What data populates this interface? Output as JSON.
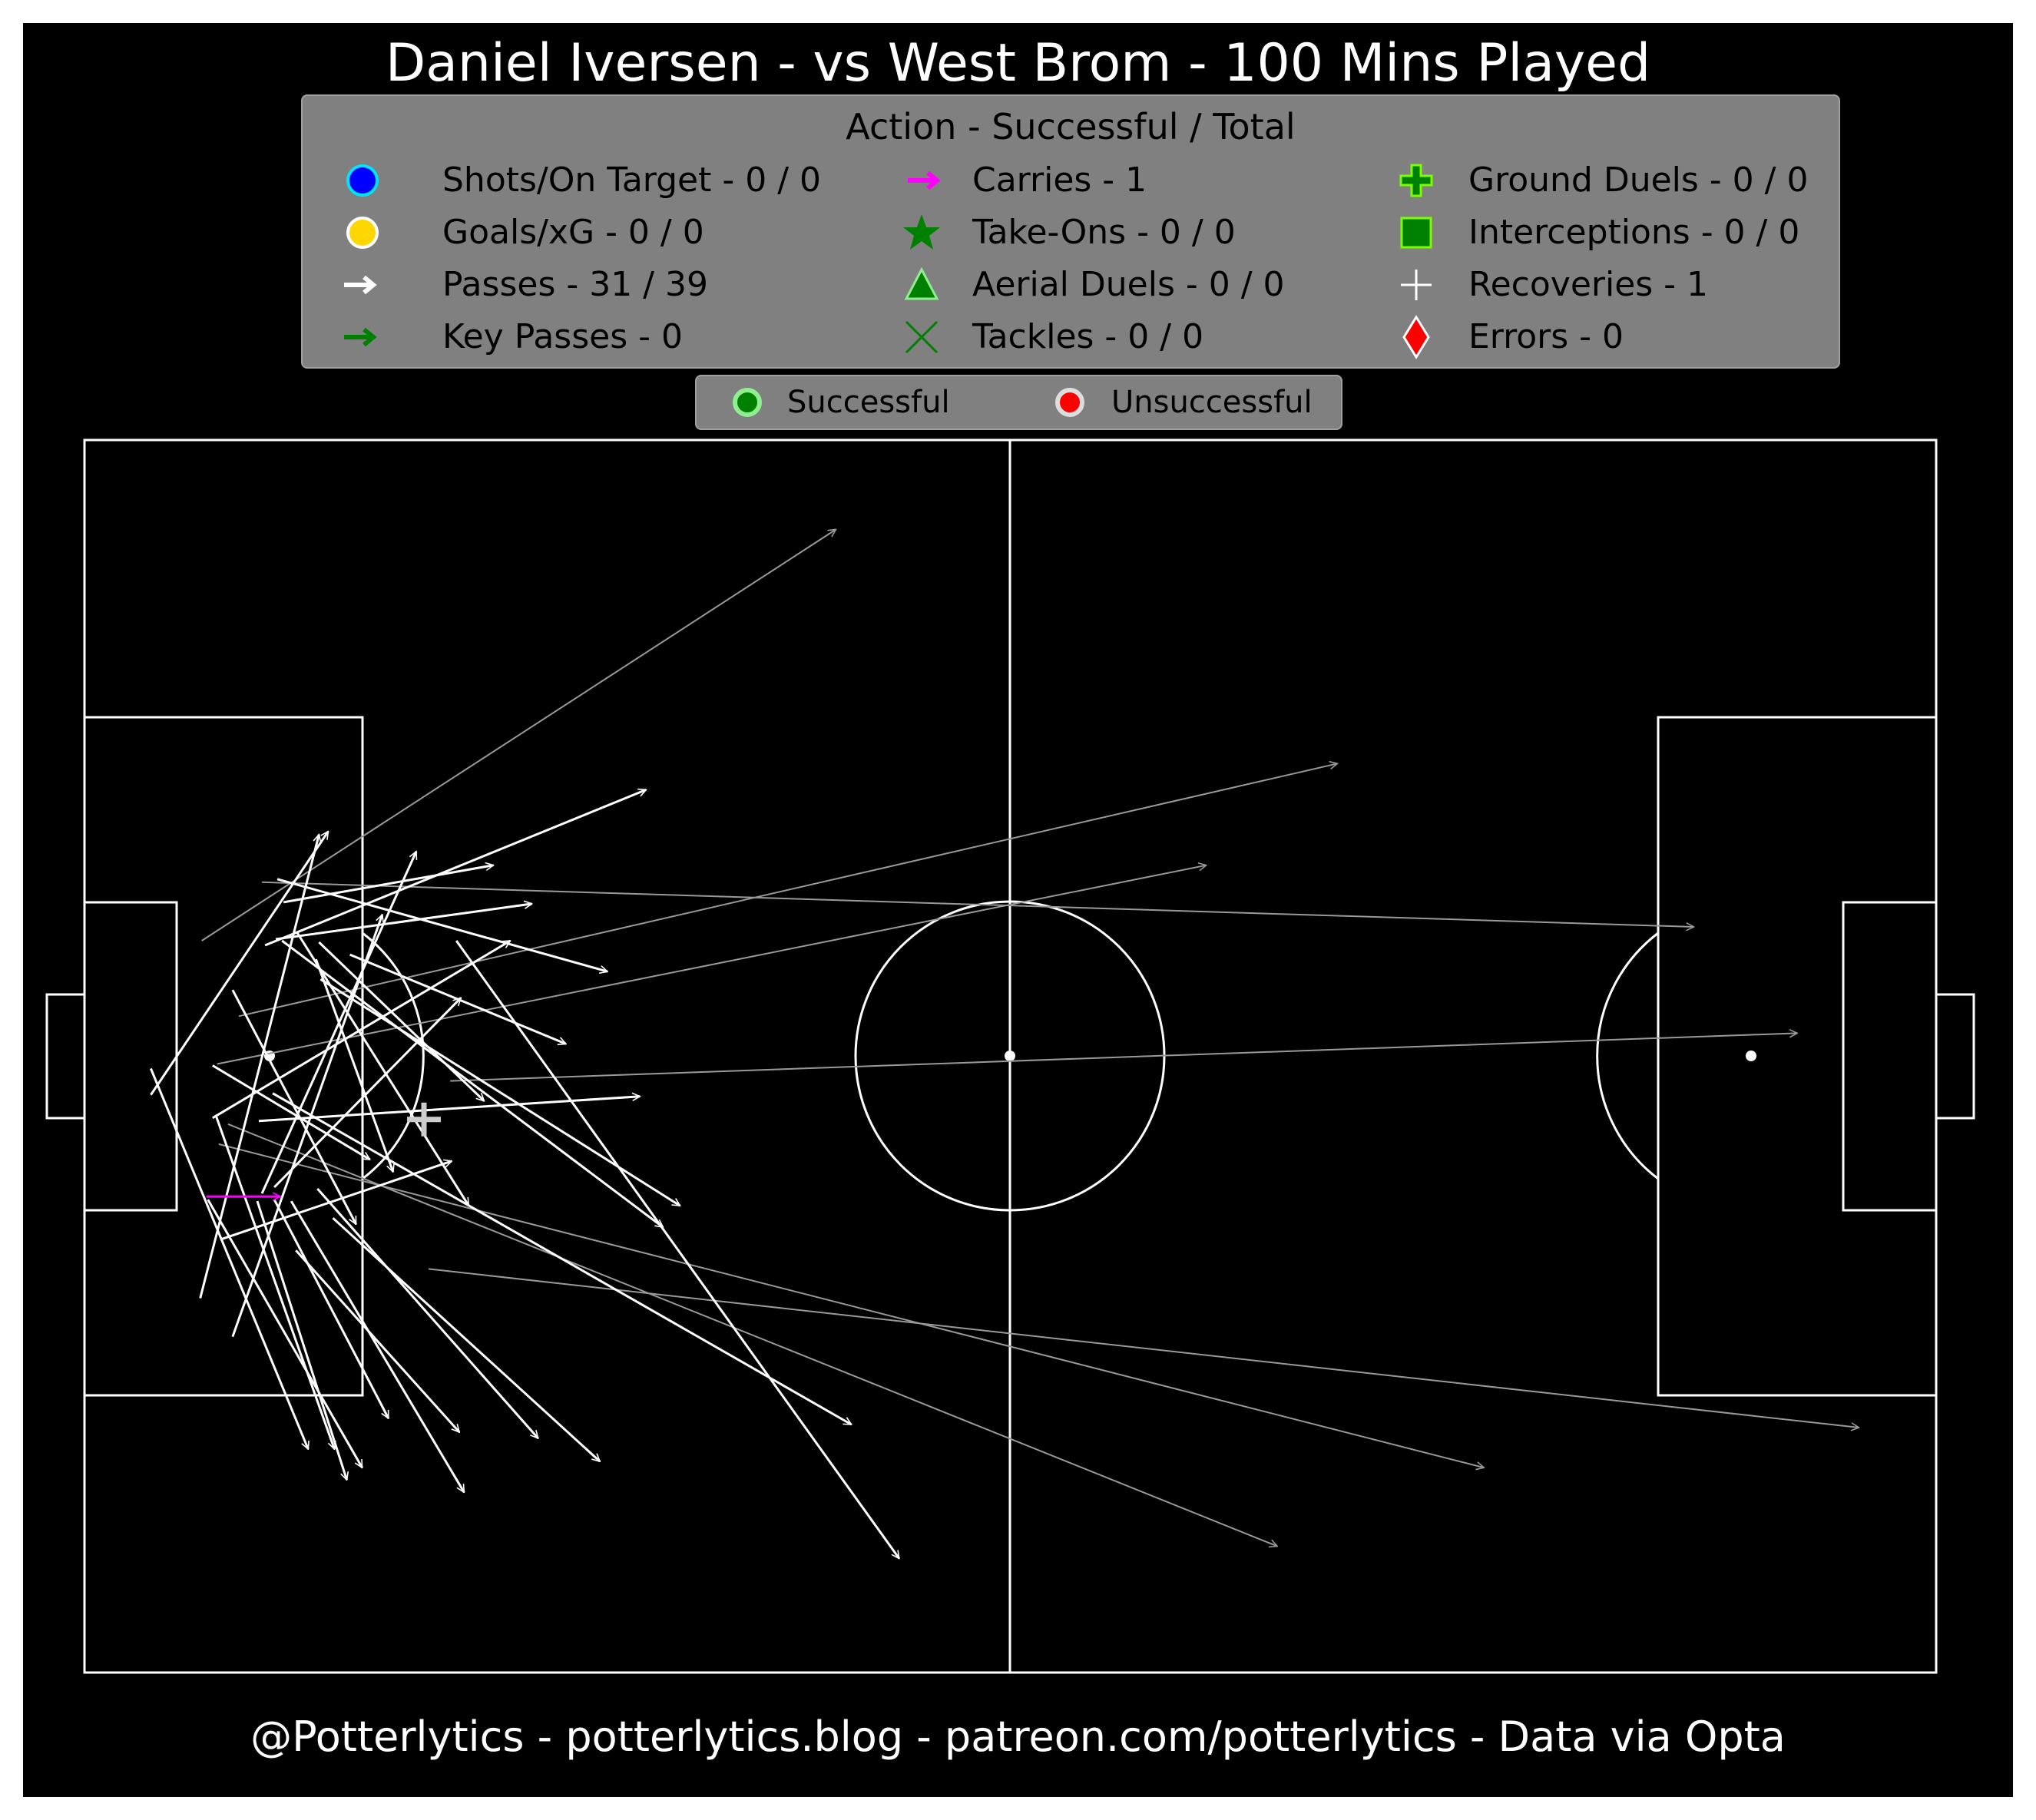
{
  "title": "Daniel Iversen - vs West Brom - 100 Mins Played",
  "footer": "@Potterlytics - potterlytics.blog - patreon.com/potterlytics - Data via Opta",
  "legend": {
    "title": "Action - Successful / Total",
    "items": [
      {
        "label": "Shots/On Target - 0 / 0",
        "icon": "blue-circle-icon",
        "color": "#0000ff"
      },
      {
        "label": "Goals/xG - 0 / 0",
        "icon": "gold-circle-icon",
        "color": "#ffd700"
      },
      {
        "label": "Passes - 31 / 39",
        "icon": "white-arrow-icon",
        "color": "#ffffff"
      },
      {
        "label": "Key Passes - 0",
        "icon": "green-arrow-icon",
        "color": "#008000"
      },
      {
        "label": "Carries - 1",
        "icon": "magenta-arrow-icon",
        "color": "#ff00ff"
      },
      {
        "label": "Take-Ons - 0 / 0",
        "icon": "green-star-icon",
        "color": "#008000"
      },
      {
        "label": "Aerial Duels - 0 / 0",
        "icon": "green-triangle-icon",
        "color": "#008000"
      },
      {
        "label": "Tackles - 0 / 0",
        "icon": "green-x-icon",
        "color": "#008000"
      },
      {
        "label": "Ground Duels - 0 / 0",
        "icon": "green-plus-icon",
        "color": "#008000"
      },
      {
        "label": "Interceptions - 0 / 0",
        "icon": "green-square-icon",
        "color": "#008000"
      },
      {
        "label": "Recoveries - 1",
        "icon": "white-plus-icon",
        "color": "#ffffff"
      },
      {
        "label": "Errors - 0",
        "icon": "red-diamond-icon",
        "color": "#ff0000"
      }
    ]
  },
  "outcome_legend": {
    "successful": "Successful",
    "unsuccessful": "Unsuccessful",
    "successful_color": "#008000",
    "unsuccessful_color": "#ff0000"
  },
  "chart_data": {
    "type": "scatter",
    "pitch": {
      "length": 120,
      "width": 80,
      "attack_direction": "left-to-right"
    },
    "passes_successful": [
      [
        4.3,
        37.5,
        15.8,
        54.6
      ],
      [
        7.5,
        24.3,
        15.2,
        54.4
      ],
      [
        8.8,
        28.1,
        23.8,
        33.2
      ],
      [
        8.3,
        36.0,
        27.6,
        47.5
      ],
      [
        9.6,
        21.8,
        19.3,
        49.2
      ],
      [
        11.7,
        47.2,
        36.4,
        57.3
      ],
      [
        11.5,
        31.1,
        21.5,
        53.3
      ],
      [
        12.4,
        47.6,
        29.0,
        49.9
      ],
      [
        11.3,
        35.8,
        36.0,
        37.4
      ],
      [
        12.9,
        50.0,
        26.5,
        52.4
      ],
      [
        8.3,
        39.4,
        18.5,
        33.3
      ],
      [
        12.8,
        47.5,
        37.5,
        28.9
      ],
      [
        12.3,
        31.5,
        24.4,
        43.8
      ],
      [
        15.0,
        46.3,
        20.0,
        32.5
      ],
      [
        9.6,
        44.3,
        17.6,
        29.1
      ],
      [
        13.8,
        48.0,
        24.9,
        30.3
      ],
      [
        17.2,
        46.6,
        31.2,
        40.8
      ],
      [
        12.5,
        51.5,
        33.9,
        45.5
      ],
      [
        15.2,
        47.4,
        25.9,
        37.1
      ],
      [
        15.3,
        45.0,
        38.6,
        30.3
      ],
      [
        4.3,
        39.2,
        14.5,
        14.5
      ],
      [
        8.5,
        36.2,
        16.2,
        14.5
      ],
      [
        8.0,
        30.7,
        18.0,
        13.3
      ],
      [
        12.3,
        30.7,
        19.7,
        16.5
      ],
      [
        11.2,
        30.6,
        17.0,
        12.5
      ],
      [
        13.4,
        30.6,
        24.6,
        11.7
      ],
      [
        13.7,
        27.4,
        24.3,
        15.6
      ],
      [
        15.1,
        31.4,
        29.4,
        15.2
      ],
      [
        16.1,
        29.5,
        33.4,
        13.7
      ],
      [
        12.2,
        37.6,
        49.7,
        16.1
      ],
      [
        24.1,
        47.5,
        52.8,
        7.4
      ]
    ],
    "passes_unsuccessful": [
      [
        7.6,
        47.5,
        48.7,
        74.2
      ],
      [
        10.0,
        42.6,
        81.2,
        59.0
      ],
      [
        11.5,
        51.3,
        104.3,
        48.4
      ],
      [
        8.6,
        39.5,
        72.7,
        52.4
      ],
      [
        23.7,
        38.4,
        111.0,
        41.5
      ],
      [
        8.7,
        34.3,
        90.7,
        13.3
      ],
      [
        22.3,
        26.2,
        115.0,
        15.9
      ],
      [
        9.3,
        35.6,
        77.3,
        8.2
      ]
    ],
    "carries": [
      [
        7.9,
        30.9,
        12.7,
        30.9
      ]
    ],
    "recoveries": [
      [
        22.0,
        35.9
      ]
    ],
    "shots": [],
    "goals": [],
    "key_passes": [],
    "take_ons": [],
    "aerial_duels": [],
    "tackles": [],
    "ground_duels": [],
    "interceptions": [],
    "errors": []
  }
}
